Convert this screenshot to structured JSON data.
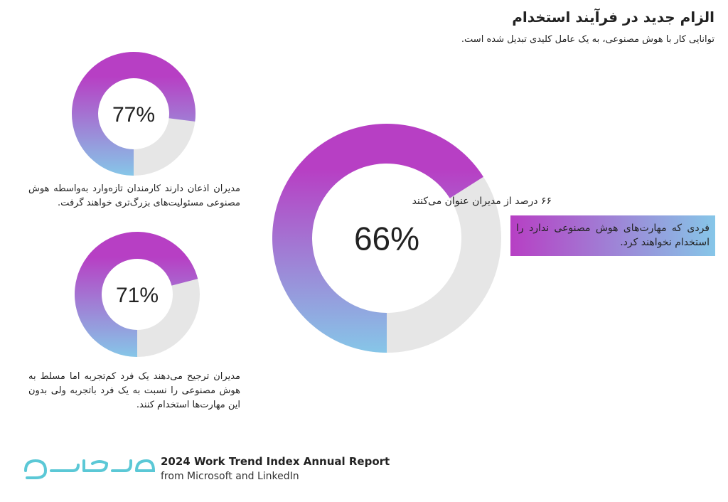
{
  "header": {
    "title": "الزام جدید در فرآیند استخدام",
    "subtitle": "توانایی کار با هوش مصنوعی، به یک عامل کلیدی تبدیل شده است."
  },
  "chart_data": [
    {
      "type": "donut",
      "values": [
        77
      ],
      "value_labels": [
        "77%"
      ],
      "colors": [
        "#b73fc4",
        "#86c6e8"
      ],
      "track_color": "#e6e6e6",
      "caption": "مدیران اذعان دارند کارمندان تازه‌وارد به‌واسطه هوش مصنوعی مسئولیت‌های بزرگ‌تری خواهند گرفت."
    },
    {
      "type": "donut",
      "values": [
        71
      ],
      "value_labels": [
        "71%"
      ],
      "colors": [
        "#b73fc4",
        "#86c6e8"
      ],
      "track_color": "#e6e6e6",
      "caption": "مدیران ترجیح می‌دهند یک فرد کم‌تجربه اما مسلط به هوش مصنوعی را نسبت به یک فرد باتجربه ولی بدون این مهارت‌ها استخدام کنند."
    },
    {
      "type": "donut",
      "values": [
        66
      ],
      "value_labels": [
        "66%"
      ],
      "colors": [
        "#b73fc4",
        "#86c6e8"
      ],
      "track_color": "#e6e6e6",
      "heading": "۶۶ درصد از مدیران عنوان می‌کنند",
      "caption": "فردی که مهارت‌های هوش مصنوعی ندارد را استخدام نخواهند کرد."
    }
  ],
  "footer": {
    "line1": "2024 Work Trend Index Annual Report",
    "line2": "from Microsoft and LinkedIn"
  }
}
